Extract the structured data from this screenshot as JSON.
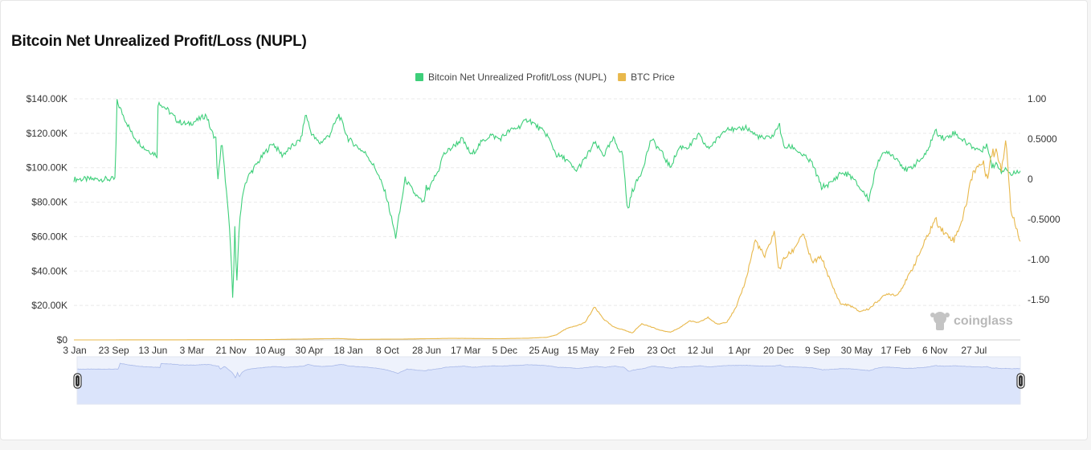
{
  "page": {
    "title": "Bitcoin Net Unrealized Profit/Loss (NUPL)",
    "watermark": "coinglass"
  },
  "chart_data": {
    "type": "line",
    "title": "Bitcoin Net Unrealized Profit/Loss (NUPL)",
    "legend_position": "top-center",
    "grid": true,
    "x_ticks": [
      "3 Jan",
      "23 Sep",
      "13 Jun",
      "3 Mar",
      "21 Nov",
      "10 Aug",
      "30 Apr",
      "18 Jan",
      "8 Oct",
      "28 Jun",
      "17 Mar",
      "5 Dec",
      "25 Aug",
      "15 May",
      "2 Feb",
      "23 Oct",
      "12 Jul",
      "1 Apr",
      "20 Dec",
      "9 Sep",
      "30 May",
      "17 Feb",
      "6 Nov",
      "27 Jul"
    ],
    "y_left": {
      "ticks": [
        "$0",
        "$20.00K",
        "$40.00K",
        "$60.00K",
        "$80.00K",
        "$100.00K",
        "$120.00K",
        "$140.00K"
      ],
      "range": [
        0,
        140000
      ]
    },
    "y_right": {
      "ticks": [
        "1.00",
        "0.5000",
        "0",
        "-0.5000",
        "-1.00",
        "-1.50"
      ],
      "range": [
        -2,
        1
      ]
    },
    "series": [
      {
        "name": "Bitcoin Net Unrealized Profit/Loss (NUPL)",
        "axis": "right",
        "color": "#3ecf7a",
        "x": [
          0,
          0.044,
          0.045,
          0.05,
          0.062,
          0.075,
          0.088,
          0.089,
          0.1,
          0.11,
          0.12,
          0.13,
          0.14,
          0.145,
          0.15,
          0.152,
          0.156,
          0.16,
          0.165,
          0.168,
          0.17,
          0.172,
          0.175,
          0.18,
          0.185,
          0.2,
          0.21,
          0.22,
          0.23,
          0.24,
          0.245,
          0.25,
          0.255,
          0.26,
          0.27,
          0.28,
          0.29,
          0.3,
          0.31,
          0.32,
          0.33,
          0.34,
          0.35,
          0.36,
          0.365,
          0.37,
          0.372,
          0.375,
          0.38,
          0.385,
          0.39,
          0.4,
          0.41,
          0.42,
          0.43,
          0.44,
          0.45,
          0.46,
          0.47,
          0.48,
          0.49,
          0.5,
          0.51,
          0.52,
          0.53,
          0.54,
          0.55,
          0.56,
          0.57,
          0.58,
          0.585,
          0.59,
          0.6,
          0.61,
          0.62,
          0.63,
          0.64,
          0.65,
          0.66,
          0.67,
          0.68,
          0.69,
          0.7,
          0.71,
          0.72,
          0.73,
          0.74,
          0.745,
          0.75,
          0.76,
          0.77,
          0.78,
          0.79,
          0.8,
          0.81,
          0.82,
          0.83,
          0.84,
          0.85,
          0.86,
          0.87,
          0.88,
          0.89,
          0.9,
          0.91,
          0.92,
          0.93,
          0.94,
          0.95,
          0.96,
          0.965,
          0.97,
          0.975,
          0.98,
          0.985,
          0.99,
          1.0
        ],
        "values": [
          0,
          0,
          0.98,
          0.85,
          0.55,
          0.38,
          0.3,
          0.97,
          0.85,
          0.72,
          0.68,
          0.73,
          0.8,
          0.6,
          0.5,
          -0.05,
          0.48,
          0.0,
          -0.7,
          -1.5,
          -0.6,
          -1.35,
          -0.5,
          -0.08,
          0.05,
          0.3,
          0.45,
          0.3,
          0.4,
          0.5,
          0.82,
          0.6,
          0.5,
          0.45,
          0.55,
          0.8,
          0.5,
          0.4,
          0.3,
          0.1,
          -0.2,
          -0.72,
          0.0,
          -0.18,
          -0.25,
          -0.3,
          -0.1,
          -0.15,
          0.0,
          0.1,
          0.3,
          0.4,
          0.5,
          0.3,
          0.45,
          0.55,
          0.5,
          0.6,
          0.65,
          0.75,
          0.65,
          0.55,
          0.3,
          0.25,
          0.1,
          0.25,
          0.45,
          0.3,
          0.5,
          0.3,
          -0.4,
          -0.15,
          0.1,
          0.5,
          0.35,
          0.15,
          0.4,
          0.4,
          0.55,
          0.38,
          0.5,
          0.65,
          0.6,
          0.65,
          0.55,
          0.5,
          0.55,
          0.7,
          0.4,
          0.4,
          0.3,
          0.2,
          -0.1,
          -0.05,
          0.08,
          0.05,
          -0.1,
          -0.25,
          0.25,
          0.35,
          0.25,
          0.1,
          0.2,
          0.3,
          0.6,
          0.5,
          0.58,
          0.48,
          0.4,
          0.35,
          0.45,
          0.15,
          0.2,
          0.1,
          0.15,
          0.05,
          0.12
        ]
      },
      {
        "name": "BTC Price",
        "axis": "left",
        "color": "#e8b84b",
        "x": [
          0,
          0.1,
          0.2,
          0.28,
          0.3,
          0.35,
          0.4,
          0.45,
          0.48,
          0.5,
          0.51,
          0.52,
          0.53,
          0.54,
          0.55,
          0.56,
          0.57,
          0.58,
          0.59,
          0.6,
          0.61,
          0.62,
          0.63,
          0.64,
          0.65,
          0.66,
          0.67,
          0.68,
          0.69,
          0.7,
          0.71,
          0.72,
          0.73,
          0.74,
          0.745,
          0.75,
          0.76,
          0.77,
          0.78,
          0.79,
          0.8,
          0.81,
          0.82,
          0.83,
          0.84,
          0.85,
          0.86,
          0.87,
          0.88,
          0.89,
          0.9,
          0.91,
          0.92,
          0.93,
          0.94,
          0.95,
          0.96,
          0.965,
          0.97,
          0.975,
          0.98,
          0.985,
          0.99,
          1.0
        ],
        "values": [
          0,
          50,
          150,
          800,
          300,
          500,
          900,
          700,
          1000,
          1500,
          3000,
          6500,
          8000,
          10000,
          19000,
          12000,
          7500,
          6000,
          4000,
          9500,
          7500,
          5500,
          4500,
          7000,
          11000,
          10000,
          13000,
          9000,
          10500,
          19000,
          35000,
          58000,
          48000,
          63000,
          40000,
          47000,
          52000,
          62000,
          45000,
          48000,
          33000,
          21000,
          20000,
          16500,
          18000,
          23000,
          27000,
          26000,
          35000,
          46000,
          58000,
          70000,
          62000,
          58000,
          72000,
          98000,
          103000,
          95000,
          108000,
          110000,
          100000,
          118000,
          75000,
          58000
        ]
      }
    ]
  }
}
